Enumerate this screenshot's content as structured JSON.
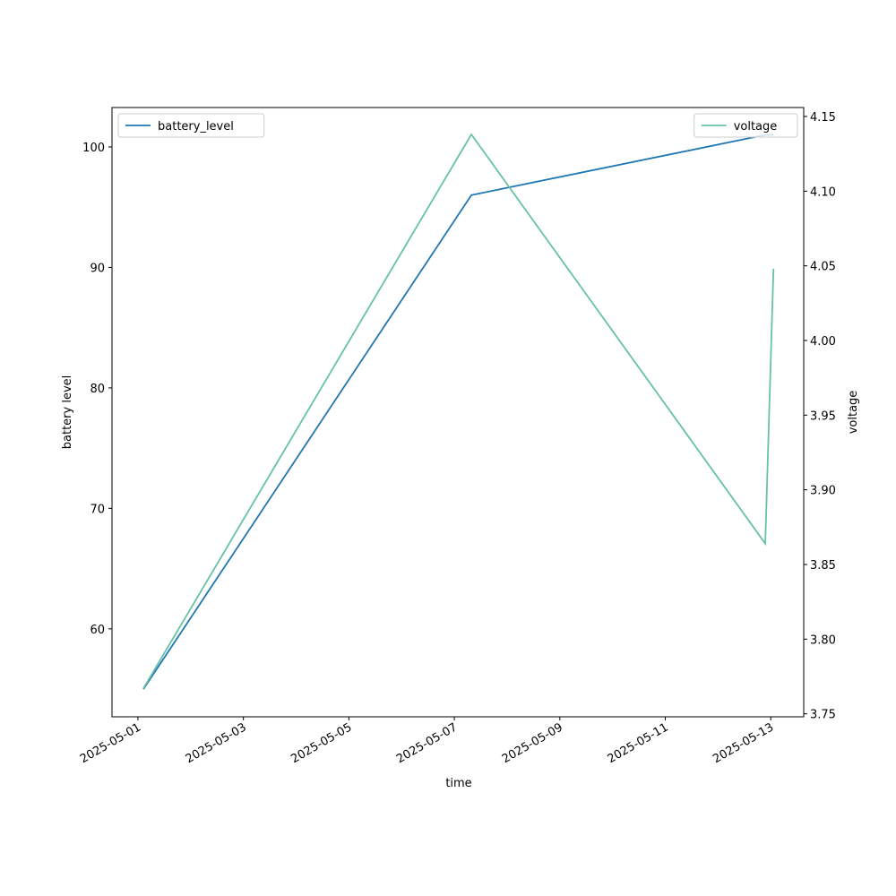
{
  "chart_data": {
    "type": "line",
    "x": [
      "2025-05-01T02:30",
      "2025-05-07T07:45",
      "2025-05-12T21:30",
      "2025-05-13T01:15"
    ],
    "xlim": [
      "2025-04-30T12:12",
      "2025-05-13T15:00"
    ],
    "xticks": [
      "2025-05-01",
      "2025-05-03",
      "2025-05-05",
      "2025-05-07",
      "2025-05-09",
      "2025-05-11",
      "2025-05-13"
    ],
    "x_label": "time",
    "y_label": "battery level",
    "y2_label": "voltage",
    "ylim": [
      52.7,
      103.27
    ],
    "yticks": [
      60,
      70,
      80,
      90,
      100
    ],
    "y2lim": [
      3.748,
      4.156
    ],
    "y2ticks": [
      3.75,
      {
        "value": 3.8,
        "label": "3.80"
      },
      3.85,
      {
        "value": 3.9,
        "label": "3.90"
      },
      3.95,
      {
        "value": 4,
        "label": "4.00"
      },
      4.05,
      {
        "value": 4.1,
        "label": "4.10"
      },
      4.15
    ],
    "series": [
      {
        "name": "battery_level",
        "color": "#1f77b4",
        "values": [
          55,
          96,
          101,
          101
        ],
        "legend": "upper left"
      },
      {
        "name": "voltage",
        "color": "#66c2a5",
        "values": [
          3.767,
          4.138,
          3.864,
          4.048
        ],
        "axis": "y2",
        "legend": "upper right"
      }
    ]
  }
}
